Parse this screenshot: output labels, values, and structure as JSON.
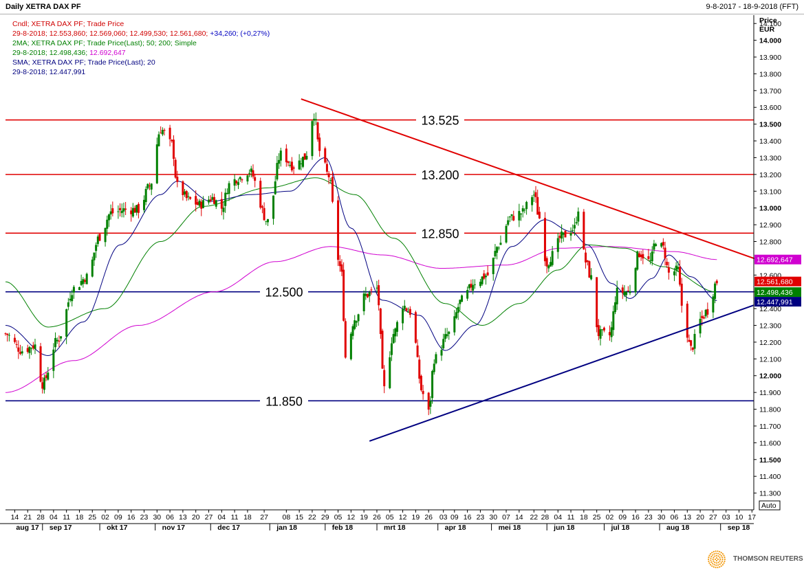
{
  "header": {
    "title": "Daily XETRA DAX PF",
    "date_range": "9-8-2017 - 18-9-2018 (FFT)"
  },
  "legend": [
    {
      "text": "Cndl; XETRA DAX PF; Trade Price",
      "color": "#d00000"
    },
    {
      "text": "29-8-2018; 12.553,860; 12.569,060; 12.499,530; 12.561,680; ",
      "color": "#d00000",
      "extra": "+34,260; (+0,27%)",
      "extra_color": "#0000c0"
    },
    {
      "text": "2MA; XETRA DAX PF; Trade Price(Last);  50; 200; Simple",
      "color": "#008000"
    },
    {
      "text": "29-8-2018; 12.498,436; ",
      "color": "#008000",
      "extra": "12.692,647",
      "extra_color": "#d000d0"
    },
    {
      "text": "SMA; XETRA DAX PF; Trade Price(Last);  20",
      "color": "#000080"
    },
    {
      "text": "29-8-2018; 12.447,991",
      "color": "#000080"
    }
  ],
  "axis": {
    "price_label": "Price",
    "currency_label": "EUR",
    "auto_label": "Auto"
  },
  "brand": {
    "name": "THOMSON REUTERS",
    "accent": "#f39c12"
  },
  "colors": {
    "up": "#008000",
    "down": "#e00000",
    "ma50": "#008000",
    "ma200": "#d000d0",
    "sma20": "#000080",
    "resistance": "#e00000",
    "support": "#000080"
  },
  "chart_data": {
    "type": "candlestick",
    "title": "Daily XETRA DAX PF",
    "ylabel": "Price EUR",
    "ylim": [
      11200,
      14150
    ],
    "yticks": [
      11300,
      11400,
      11500,
      11600,
      11700,
      11800,
      11900,
      12000,
      12100,
      12200,
      12300,
      12400,
      12500,
      12600,
      12700,
      12800,
      12900,
      13000,
      13100,
      13200,
      13300,
      13400,
      13500,
      13600,
      13700,
      13800,
      13900,
      14000,
      14100
    ],
    "x_range": [
      "2017-08-09",
      "2018-09-18"
    ],
    "x_ticks": [
      {
        "d": "2017-08-14",
        "l": "14"
      },
      {
        "d": "2017-08-21",
        "l": "21"
      },
      {
        "d": "2017-08-28",
        "l": "28"
      },
      {
        "d": "2017-09-04",
        "l": "04"
      },
      {
        "d": "2017-09-11",
        "l": "11"
      },
      {
        "d": "2017-09-18",
        "l": "18"
      },
      {
        "d": "2017-09-25",
        "l": "25"
      },
      {
        "d": "2017-10-02",
        "l": "02"
      },
      {
        "d": "2017-10-09",
        "l": "09"
      },
      {
        "d": "2017-10-16",
        "l": "16"
      },
      {
        "d": "2017-10-23",
        "l": "23"
      },
      {
        "d": "2017-10-30",
        "l": "30"
      },
      {
        "d": "2017-11-06",
        "l": "06"
      },
      {
        "d": "2017-11-13",
        "l": "13"
      },
      {
        "d": "2017-11-20",
        "l": "20"
      },
      {
        "d": "2017-11-27",
        "l": "27"
      },
      {
        "d": "2017-12-04",
        "l": "04"
      },
      {
        "d": "2017-12-11",
        "l": "11"
      },
      {
        "d": "2017-12-18",
        "l": "18"
      },
      {
        "d": "2017-12-27",
        "l": "27"
      },
      {
        "d": "2018-01-08",
        "l": "08"
      },
      {
        "d": "2018-01-15",
        "l": "15"
      },
      {
        "d": "2018-01-22",
        "l": "22"
      },
      {
        "d": "2018-01-29",
        "l": "29"
      },
      {
        "d": "2018-02-05",
        "l": "05"
      },
      {
        "d": "2018-02-12",
        "l": "12"
      },
      {
        "d": "2018-02-19",
        "l": "19"
      },
      {
        "d": "2018-02-26",
        "l": "26"
      },
      {
        "d": "2018-03-05",
        "l": "05"
      },
      {
        "d": "2018-03-12",
        "l": "12"
      },
      {
        "d": "2018-03-19",
        "l": "19"
      },
      {
        "d": "2018-03-26",
        "l": "26"
      },
      {
        "d": "2018-04-03",
        "l": "03"
      },
      {
        "d": "2018-04-09",
        "l": "09"
      },
      {
        "d": "2018-04-16",
        "l": "16"
      },
      {
        "d": "2018-04-23",
        "l": "23"
      },
      {
        "d": "2018-04-30",
        "l": "30"
      },
      {
        "d": "2018-05-07",
        "l": "07"
      },
      {
        "d": "2018-05-14",
        "l": "14"
      },
      {
        "d": "2018-05-22",
        "l": "22"
      },
      {
        "d": "2018-05-28",
        "l": "28"
      },
      {
        "d": "2018-06-04",
        "l": "04"
      },
      {
        "d": "2018-06-11",
        "l": "11"
      },
      {
        "d": "2018-06-18",
        "l": "18"
      },
      {
        "d": "2018-06-25",
        "l": "25"
      },
      {
        "d": "2018-07-02",
        "l": "02"
      },
      {
        "d": "2018-07-09",
        "l": "09"
      },
      {
        "d": "2018-07-16",
        "l": "16"
      },
      {
        "d": "2018-07-23",
        "l": "23"
      },
      {
        "d": "2018-07-30",
        "l": "30"
      },
      {
        "d": "2018-08-06",
        "l": "06"
      },
      {
        "d": "2018-08-13",
        "l": "13"
      },
      {
        "d": "2018-08-20",
        "l": "20"
      },
      {
        "d": "2018-08-27",
        "l": "27"
      },
      {
        "d": "2018-09-03",
        "l": "03"
      },
      {
        "d": "2018-09-10",
        "l": "10"
      },
      {
        "d": "2018-09-17",
        "l": "17"
      }
    ],
    "months": [
      {
        "d": "2017-08-14",
        "l": "aug 17"
      },
      {
        "d": "2017-09-01",
        "l": "sep 17"
      },
      {
        "d": "2017-10-02",
        "l": "okt 17"
      },
      {
        "d": "2017-11-01",
        "l": "nov 17"
      },
      {
        "d": "2017-12-01",
        "l": "dec 17"
      },
      {
        "d": "2018-01-02",
        "l": "jan 18"
      },
      {
        "d": "2018-02-01",
        "l": "feb 18"
      },
      {
        "d": "2018-03-01",
        "l": "mrt 18"
      },
      {
        "d": "2018-04-03",
        "l": "apr 18"
      },
      {
        "d": "2018-05-02",
        "l": "mei 18"
      },
      {
        "d": "2018-06-01",
        "l": "jun 18"
      },
      {
        "d": "2018-07-02",
        "l": "jul 18"
      },
      {
        "d": "2018-08-01",
        "l": "aug 18"
      },
      {
        "d": "2018-09-03",
        "l": "sep 18"
      }
    ],
    "horizontal_levels": [
      {
        "value": 13525,
        "label": "13.525",
        "color": "#e00000"
      },
      {
        "value": 13200,
        "label": "13.200",
        "color": "#e00000"
      },
      {
        "value": 12850,
        "label": "12.850",
        "color": "#e00000"
      },
      {
        "value": 12500,
        "label": "12.500",
        "color": "#000080"
      },
      {
        "value": 11850,
        "label": "11.850",
        "color": "#000080"
      }
    ],
    "trendlines": [
      {
        "name": "resistance",
        "from": [
          "2018-01-16",
          13650
        ],
        "to": [
          "2018-09-18",
          12700
        ],
        "color": "#e00000"
      },
      {
        "name": "support",
        "from": [
          "2018-02-22",
          11610
        ],
        "to": [
          "2018-09-18",
          12420
        ],
        "color": "#000080"
      }
    ],
    "last_values": [
      {
        "label": "12.692,647",
        "value": 12692.647,
        "color": "#d000d0"
      },
      {
        "label": "12.561,680",
        "value": 12561.68,
        "color": "#e00000"
      },
      {
        "label": "12.498,436",
        "value": 12498.436,
        "color": "#008000"
      },
      {
        "label": "12.447,991",
        "value": 12447.991,
        "color": "#000080"
      }
    ],
    "close_anchors": [
      [
        "2017-08-09",
        12250
      ],
      [
        "2017-08-18",
        12150
      ],
      [
        "2017-08-25",
        12180
      ],
      [
        "2017-08-29",
        11950
      ],
      [
        "2017-09-06",
        12210
      ],
      [
        "2017-09-15",
        12520
      ],
      [
        "2017-09-22",
        12590
      ],
      [
        "2017-09-29",
        12830
      ],
      [
        "2017-10-05",
        12970
      ],
      [
        "2017-10-13",
        12990
      ],
      [
        "2017-10-20",
        12990
      ],
      [
        "2017-10-26",
        13130
      ],
      [
        "2017-11-01",
        13470
      ],
      [
        "2017-11-07",
        13380
      ],
      [
        "2017-11-10",
        13130
      ],
      [
        "2017-11-16",
        13050
      ],
      [
        "2017-11-22",
        13020
      ],
      [
        "2017-11-29",
        13060
      ],
      [
        "2017-12-04",
        13000
      ],
      [
        "2017-12-08",
        13140
      ],
      [
        "2017-12-13",
        13180
      ],
      [
        "2017-12-19",
        13220
      ],
      [
        "2017-12-29",
        12920
      ],
      [
        "2018-01-05",
        13320
      ],
      [
        "2018-01-12",
        13250
      ],
      [
        "2018-01-18",
        13300
      ],
      [
        "2018-01-23",
        13560
      ],
      [
        "2018-01-26",
        13340
      ],
      [
        "2018-01-31",
        13190
      ],
      [
        "2018-02-05",
        12700
      ],
      [
        "2018-02-07",
        12600
      ],
      [
        "2018-02-09",
        12110
      ],
      [
        "2018-02-14",
        12340
      ],
      [
        "2018-02-20",
        12480
      ],
      [
        "2018-02-26",
        12520
      ],
      [
        "2018-03-02",
        11920
      ],
      [
        "2018-03-07",
        12250
      ],
      [
        "2018-03-12",
        12420
      ],
      [
        "2018-03-16",
        12380
      ],
      [
        "2018-03-23",
        11890
      ],
      [
        "2018-03-26",
        11780
      ],
      [
        "2018-03-29",
        12100
      ],
      [
        "2018-04-06",
        12250
      ],
      [
        "2018-04-13",
        12450
      ],
      [
        "2018-04-20",
        12560
      ],
      [
        "2018-04-27",
        12600
      ],
      [
        "2018-05-03",
        12780
      ],
      [
        "2018-05-09",
        12940
      ],
      [
        "2018-05-15",
        12970
      ],
      [
        "2018-05-22",
        13080
      ],
      [
        "2018-05-25",
        12940
      ],
      [
        "2018-05-29",
        12670
      ],
      [
        "2018-06-01",
        12720
      ],
      [
        "2018-06-06",
        12830
      ],
      [
        "2018-06-13",
        12880
      ],
      [
        "2018-06-15",
        13000
      ],
      [
        "2018-06-19",
        12680
      ],
      [
        "2018-06-22",
        12580
      ],
      [
        "2018-06-26",
        12250
      ],
      [
        "2018-07-02",
        12240
      ],
      [
        "2018-07-06",
        12500
      ],
      [
        "2018-07-12",
        12500
      ],
      [
        "2018-07-18",
        12730
      ],
      [
        "2018-07-24",
        12680
      ],
      [
        "2018-07-27",
        12810
      ],
      [
        "2018-07-31",
        12760
      ],
      [
        "2018-08-03",
        12610
      ],
      [
        "2018-08-08",
        12630
      ],
      [
        "2018-08-10",
        12420
      ],
      [
        "2018-08-15",
        12160
      ],
      [
        "2018-08-20",
        12330
      ],
      [
        "2018-08-24",
        12390
      ],
      [
        "2018-08-29",
        12561.68
      ]
    ],
    "ma_anchors": {
      "sma20": [
        [
          "2017-08-09",
          12300
        ],
        [
          "2017-09-01",
          12120
        ],
        [
          "2017-09-20",
          12320
        ],
        [
          "2017-10-10",
          12780
        ],
        [
          "2017-11-01",
          13080
        ],
        [
          "2017-11-10",
          13160
        ],
        [
          "2017-11-28",
          13040
        ],
        [
          "2017-12-20",
          13080
        ],
        [
          "2018-01-10",
          13100
        ],
        [
          "2018-01-29",
          13300
        ],
        [
          "2018-02-12",
          12880
        ],
        [
          "2018-03-01",
          12450
        ],
        [
          "2018-03-21",
          12360
        ],
        [
          "2018-04-04",
          12150
        ],
        [
          "2018-04-20",
          12300
        ],
        [
          "2018-05-10",
          12770
        ],
        [
          "2018-05-28",
          12930
        ],
        [
          "2018-06-11",
          12860
        ],
        [
          "2018-06-20",
          12780
        ],
        [
          "2018-07-03",
          12550
        ],
        [
          "2018-07-13",
          12460
        ],
        [
          "2018-07-25",
          12580
        ],
        [
          "2018-08-03",
          12720
        ],
        [
          "2018-08-15",
          12590
        ],
        [
          "2018-08-29",
          12447.991
        ]
      ],
      "ma50": [
        [
          "2017-08-09",
          12560
        ],
        [
          "2017-09-01",
          12290
        ],
        [
          "2017-10-02",
          12400
        ],
        [
          "2017-11-01",
          12800
        ],
        [
          "2017-11-24",
          13010
        ],
        [
          "2017-12-29",
          13120
        ],
        [
          "2018-01-24",
          13180
        ],
        [
          "2018-02-14",
          13080
        ],
        [
          "2018-03-07",
          12820
        ],
        [
          "2018-04-04",
          12430
        ],
        [
          "2018-04-24",
          12300
        ],
        [
          "2018-05-14",
          12430
        ],
        [
          "2018-06-04",
          12630
        ],
        [
          "2018-06-20",
          12780
        ],
        [
          "2018-07-10",
          12760
        ],
        [
          "2018-07-31",
          12650
        ],
        [
          "2018-08-29",
          12498.436
        ]
      ],
      "ma200": [
        [
          "2017-08-09",
          11900
        ],
        [
          "2017-09-15",
          12090
        ],
        [
          "2017-10-20",
          12300
        ],
        [
          "2017-11-30",
          12500
        ],
        [
          "2018-01-02",
          12680
        ],
        [
          "2018-02-01",
          12770
        ],
        [
          "2018-03-01",
          12720
        ],
        [
          "2018-04-02",
          12640
        ],
        [
          "2018-05-07",
          12660
        ],
        [
          "2018-06-05",
          12760
        ],
        [
          "2018-07-02",
          12770
        ],
        [
          "2018-08-06",
          12740
        ],
        [
          "2018-08-29",
          12692.647
        ]
      ]
    }
  }
}
